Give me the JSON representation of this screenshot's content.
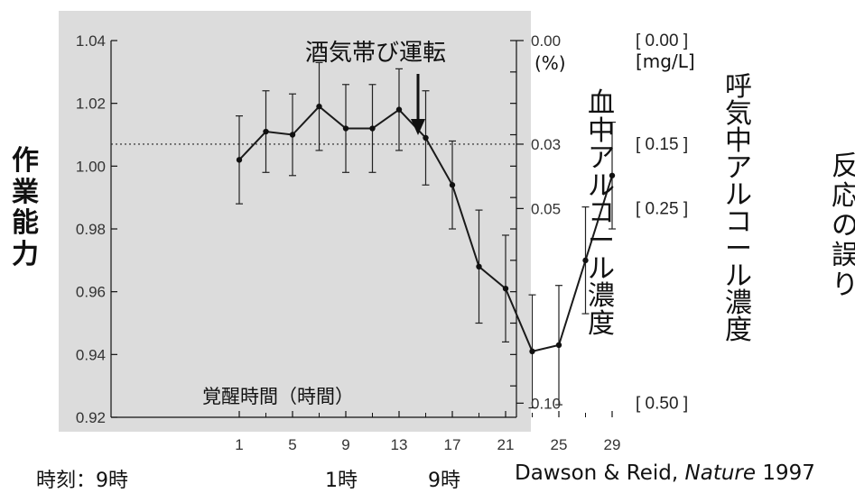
{
  "chart_data": {
    "type": "line",
    "annotation": "酒気帯び運転",
    "xlabel": "覚醒時間（時間）",
    "ylabel": "作業能力",
    "right_ylabel_blood": "血中アルコール濃度",
    "right_ylabel_breath": "呼気中アルコール濃度",
    "x_ticks": [
      "1",
      "5",
      "9",
      "13",
      "17",
      "21",
      "25",
      "29"
    ],
    "y_ticks": [
      "1.04",
      "1.02",
      "1.00",
      "0.98",
      "0.96",
      "0.94",
      "0.92"
    ],
    "ylim": [
      0.92,
      1.04
    ],
    "xlim": [
      0,
      30
    ],
    "blood_ticks": [
      {
        "label": "0.00",
        "level": 1.04
      },
      {
        "label": "0.03",
        "level": 1.007
      },
      {
        "label": "0.05",
        "level": 0.9865
      },
      {
        "label": "0.10",
        "level": 0.9245
      }
    ],
    "blood_unit": "(%)",
    "breath_unit": "[mg/L]",
    "breath_ticks": [
      {
        "label": "[ 0.00 ]",
        "level": 1.04
      },
      {
        "label": "[ 0.15 ]",
        "level": 1.007
      },
      {
        "label": "[ 0.25 ]",
        "level": 0.9865
      },
      {
        "label": "[ 0.50 ]",
        "level": 0.9245
      }
    ],
    "threshold_level": 1.007,
    "series": [
      {
        "x": [
          1,
          3,
          5,
          7,
          9,
          11,
          13,
          15,
          17,
          19,
          21,
          23,
          25,
          27,
          29
        ],
        "y": [
          1.002,
          1.011,
          1.01,
          1.019,
          1.012,
          1.012,
          1.018,
          1.009,
          0.994,
          0.968,
          0.961,
          0.941,
          0.943,
          0.97,
          0.997
        ],
        "error": [
          0.014,
          0.013,
          0.013,
          0.014,
          0.014,
          0.014,
          0.013,
          0.015,
          0.014,
          0.018,
          0.017,
          0.018,
          0.019,
          0.017,
          0.017
        ]
      }
    ],
    "grid": false
  },
  "bottom": {
    "time_label": "時刻：9時",
    "time_1": "1時",
    "time_9": "9時",
    "citation_authors": "Dawson & Reid, ",
    "citation_journal": "Nature",
    "citation_year": " 1997"
  },
  "edge_text": "反応の誤り",
  "colors": {
    "plot_bg": "#dcdcdc",
    "line": "#1a1a1a",
    "text": "#111111"
  }
}
